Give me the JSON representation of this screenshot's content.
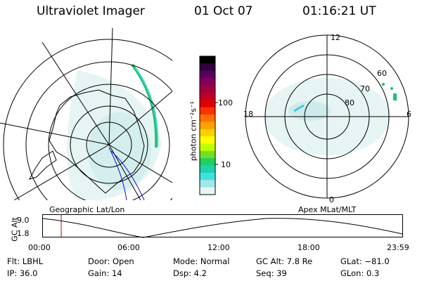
{
  "header": {
    "title": "Ultraviolet Imager",
    "date": "01 Oct 07",
    "time": "01:16:21 UT"
  },
  "colorbar": {
    "unit_label": "photon cm⁻²s⁻¹",
    "ticks": [
      "100",
      "10"
    ],
    "colors": [
      "#000000",
      "#300040",
      "#5a0060",
      "#80005a",
      "#a00040",
      "#c00020",
      "#e00000",
      "#ff3000",
      "#ff7000",
      "#ffa000",
      "#ffd000",
      "#ffff00",
      "#c0ff00",
      "#70e020",
      "#20d060",
      "#20d0b0",
      "#40e0e0",
      "#a0e8e8",
      "#e6f6f6"
    ]
  },
  "left_panel": {
    "caption": "Geographic Lat/Lon"
  },
  "right_panel": {
    "caption": "Apex MLat/MLT",
    "mlt_labels": {
      "top": "12",
      "left": "18",
      "right": "6",
      "bottom": "0"
    },
    "lat_labels": [
      "60",
      "70",
      "80"
    ]
  },
  "timeline": {
    "axis_label": "GC Alt",
    "y_ticks": [
      "9.0",
      "1.8"
    ],
    "x_ticks": [
      "00:00",
      "06:00",
      "12:00",
      "18:00",
      "23:59"
    ],
    "marker_time": "01:16",
    "marker_color": "#cc0000"
  },
  "info": {
    "flt": "Flt: LBHL",
    "ip": "IP: 36.0",
    "door": "Door: Open",
    "gain": "Gain: 14",
    "mode": "Mode: Normal",
    "dsp": "Dsp:     4.2",
    "gc_alt": "GC Alt: 7.8 Re",
    "seq": "Seq: 39",
    "glat": "GLat: −81.0",
    "glon": "GLon:    0.3"
  }
}
